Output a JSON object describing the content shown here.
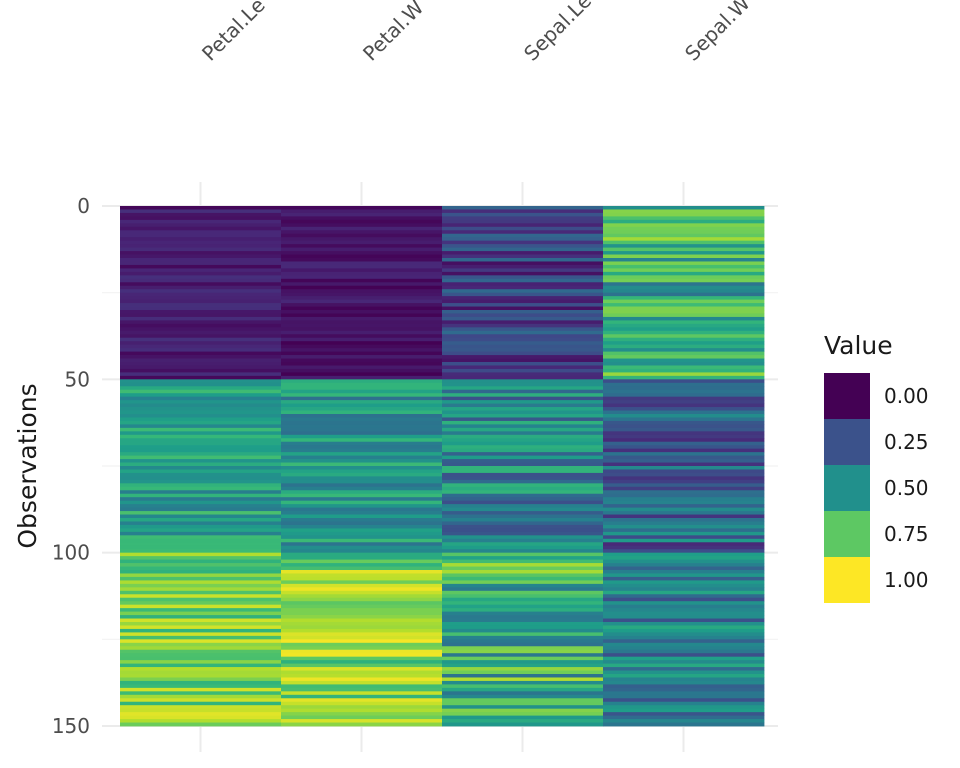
{
  "chart_data": {
    "type": "heatmap",
    "title": "",
    "xlabel": "",
    "ylabel": "Observations",
    "columns": [
      "Petal.Length",
      "Petal.Width",
      "Sepal.Length",
      "Sepal.Width"
    ],
    "column_tick_labels": [
      "Petal.Le",
      "Petal.W",
      "Sepal.Le",
      "Sepal.W"
    ],
    "ylim": [
      0,
      150
    ],
    "y_ticks": [
      "0",
      "50",
      "100",
      "150"
    ],
    "n_observations": 150,
    "grid": true,
    "legend": {
      "title": "Value",
      "placement": "right",
      "entries": [
        {
          "label": "0.00",
          "value": 0.0,
          "color": "#440154"
        },
        {
          "label": "0.25",
          "value": 0.25,
          "color": "#3B528B"
        },
        {
          "label": "0.50",
          "value": 0.5,
          "color": "#21908C"
        },
        {
          "label": "0.75",
          "value": 0.75,
          "color": "#5DC863"
        },
        {
          "label": "1.00",
          "value": 1.0,
          "color": "#FDE725"
        }
      ]
    },
    "colorscale": [
      "#440154",
      "#482878",
      "#3E4A89",
      "#31688E",
      "#26828E",
      "#1F9E89",
      "#35B779",
      "#6DCD59",
      "#B4DE2C",
      "#FDE725"
    ],
    "segments": {
      "Petal.Length": [
        {
          "from": 0,
          "to": 50,
          "mean": 0.08,
          "spread": 0.04
        },
        {
          "from": 50,
          "to": 100,
          "mean": 0.55,
          "spread": 0.1
        },
        {
          "from": 100,
          "to": 150,
          "mean": 0.8,
          "spread": 0.1
        }
      ],
      "Petal.Width": [
        {
          "from": 0,
          "to": 50,
          "mean": 0.05,
          "spread": 0.04
        },
        {
          "from": 50,
          "to": 100,
          "mean": 0.52,
          "spread": 0.1
        },
        {
          "from": 100,
          "to": 150,
          "mean": 0.8,
          "spread": 0.12
        }
      ],
      "Sepal.Length": [
        {
          "from": 0,
          "to": 50,
          "mean": 0.2,
          "spread": 0.1
        },
        {
          "from": 50,
          "to": 100,
          "mean": 0.45,
          "spread": 0.14
        },
        {
          "from": 100,
          "to": 150,
          "mean": 0.63,
          "spread": 0.16
        }
      ],
      "Sepal.Width": [
        {
          "from": 0,
          "to": 50,
          "mean": 0.62,
          "spread": 0.16
        },
        {
          "from": 50,
          "to": 100,
          "mean": 0.32,
          "spread": 0.14
        },
        {
          "from": 100,
          "to": 150,
          "mean": 0.42,
          "spread": 0.12
        }
      ]
    }
  }
}
